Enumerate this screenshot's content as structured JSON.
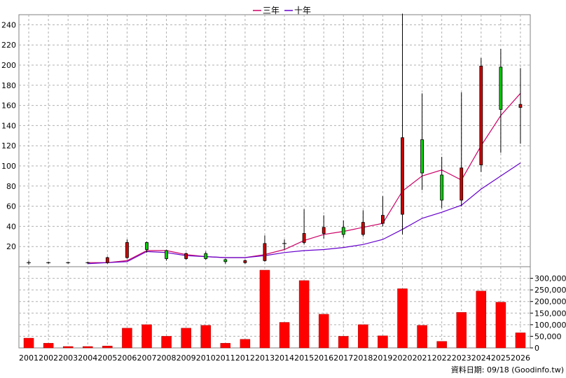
{
  "chart_data": {
    "type": "candlestick",
    "grid": true,
    "legend_position": "top-center",
    "years": [
      "2001",
      "2002",
      "2003",
      "2004",
      "2005",
      "2006",
      "2007",
      "2008",
      "2009",
      "2010",
      "2011",
      "2012",
      "2013",
      "2014",
      "2015",
      "2016",
      "2017",
      "2018",
      "2019",
      "2020",
      "2021",
      "2022",
      "2023",
      "2024",
      "2025",
      "2026"
    ],
    "price_axis": {
      "ylim": [
        0,
        250
      ],
      "ticks": [
        20,
        40,
        60,
        80,
        100,
        120,
        140,
        160,
        180,
        200,
        220,
        240
      ]
    },
    "volume_axis": {
      "ylim": [
        0,
        350000
      ],
      "ticks": [
        0,
        50000,
        100000,
        150000,
        200000,
        250000,
        300000
      ],
      "tick_labels": [
        "0",
        "50,000",
        "100,000",
        "150,000",
        "200,000",
        "250,000",
        "300,000"
      ]
    },
    "candles": [
      {
        "o": 4,
        "c": 4,
        "h": 6,
        "l": 2
      },
      {
        "o": 4,
        "c": 4,
        "h": 5,
        "l": 3
      },
      {
        "o": 4,
        "c": 4,
        "h": 5,
        "l": 3
      },
      {
        "o": 4,
        "c": 4,
        "h": 5,
        "l": 3
      },
      {
        "o": 4,
        "c": 9,
        "h": 10,
        "l": 3
      },
      {
        "o": 9,
        "c": 24,
        "h": 27,
        "l": 8
      },
      {
        "o": 24,
        "c": 17,
        "h": 25,
        "l": 14
      },
      {
        "o": 16,
        "c": 8,
        "h": 17,
        "l": 6
      },
      {
        "o": 8,
        "c": 13,
        "h": 14,
        "l": 7
      },
      {
        "o": 13,
        "c": 8,
        "h": 15,
        "l": 7
      },
      {
        "o": 7,
        "c": 5,
        "h": 8,
        "l": 3
      },
      {
        "o": 4,
        "c": 6,
        "h": 7,
        "l": 3
      },
      {
        "o": 6,
        "c": 23,
        "h": 31,
        "l": 5
      },
      {
        "o": 23,
        "c": 23,
        "h": 27,
        "l": 17
      },
      {
        "o": 24,
        "c": 33,
        "h": 57,
        "l": 22
      },
      {
        "o": 33,
        "c": 39,
        "h": 51,
        "l": 28
      },
      {
        "o": 39,
        "c": 32,
        "h": 46,
        "l": 29
      },
      {
        "o": 32,
        "c": 44,
        "h": 56,
        "l": 30
      },
      {
        "o": 43,
        "c": 51,
        "h": 70,
        "l": 40
      },
      {
        "o": 52,
        "c": 128,
        "h": 251,
        "l": 32
      },
      {
        "o": 126,
        "c": 93,
        "h": 172,
        "l": 76
      },
      {
        "o": 91,
        "c": 66,
        "h": 109,
        "l": 58
      },
      {
        "o": 66,
        "c": 98,
        "h": 173,
        "l": 60
      },
      {
        "o": 101,
        "c": 199,
        "h": 207,
        "l": 94
      },
      {
        "o": 198,
        "c": 156,
        "h": 216,
        "l": 113
      },
      {
        "o": 158,
        "c": 161,
        "h": 197,
        "l": 122
      }
    ],
    "series": [
      {
        "name": "三年",
        "color": "#cc0066",
        "start_index": 3,
        "values": [
          4,
          4,
          6,
          16,
          16,
          12,
          10,
          9,
          9,
          12,
          17,
          26,
          32,
          35,
          39,
          43,
          75,
          90,
          96,
          86,
          120,
          150,
          172
        ]
      },
      {
        "name": "十年",
        "color": "#6600cc",
        "start_index": 3,
        "values": [
          3,
          4,
          5,
          15,
          14,
          11,
          10,
          9,
          9,
          11,
          14,
          16,
          17,
          19,
          22,
          27,
          37,
          48,
          54,
          61,
          77,
          90,
          103
        ]
      }
    ],
    "volume": [
      42000,
      20000,
      6000,
      6000,
      8000,
      85000,
      100000,
      50000,
      85000,
      97000,
      20000,
      37000,
      335000,
      110000,
      290000,
      145000,
      50000,
      100000,
      52000,
      255000,
      97000,
      28000,
      153000,
      245000,
      197000,
      65000
    ],
    "up_color": "#cc0000",
    "down_color": "#00cc00",
    "volume_color": "#ff0000"
  },
  "footer": {
    "source_label": "資料日期: 09/18 (Goodinfo.tw)"
  }
}
